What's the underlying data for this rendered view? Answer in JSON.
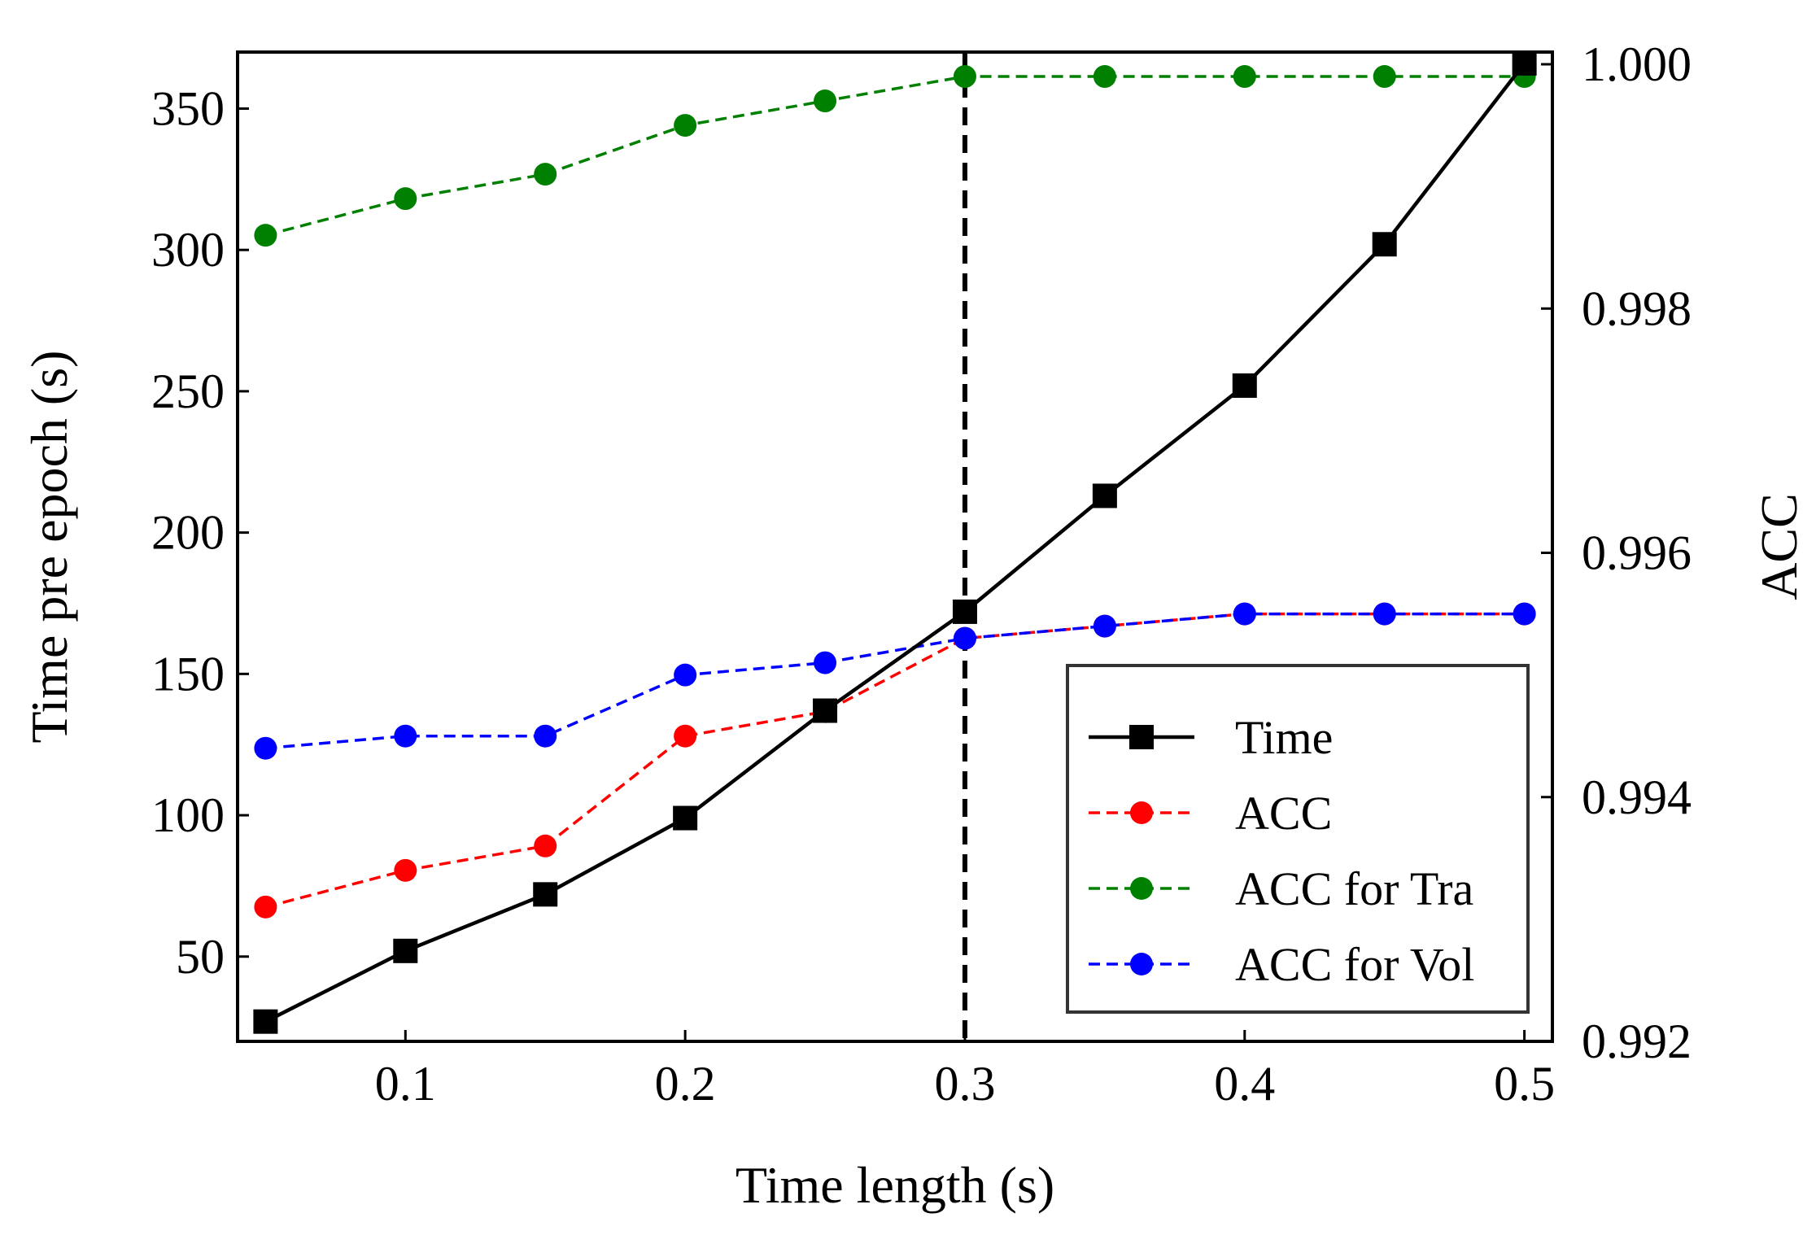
{
  "chart_data": {
    "type": "line",
    "title": "",
    "xlabel": "Time length (s)",
    "ylabel_left": "Time pre epoch (s)",
    "ylabel_right": "ACC",
    "x": [
      0.05,
      0.1,
      0.15,
      0.2,
      0.25,
      0.3,
      0.35,
      0.4,
      0.45,
      0.5
    ],
    "xlim": [
      0.04,
      0.51
    ],
    "ylim_left": [
      20,
      370
    ],
    "ylim_right": [
      0.992,
      1.0001
    ],
    "x_ticks": [
      0.1,
      0.2,
      0.3,
      0.4,
      0.5
    ],
    "x_tick_labels": [
      "0.1",
      "0.2",
      "0.3",
      "0.4",
      "0.5"
    ],
    "y_left_ticks": [
      50,
      100,
      150,
      200,
      250,
      300,
      350
    ],
    "y_left_tick_labels": [
      "50",
      "100",
      "150",
      "200",
      "250",
      "300",
      "350"
    ],
    "y_right_ticks": [
      0.992,
      0.994,
      0.996,
      0.998,
      1.0
    ],
    "y_right_tick_labels": [
      "0.992",
      "0.994",
      "0.996",
      "0.998",
      "1.000"
    ],
    "vline_x": 0.3,
    "grid": false,
    "legend_position": "lower-right",
    "series": [
      {
        "name": "Time",
        "axis": "left",
        "color": "#000000",
        "style": "solid",
        "marker": "square",
        "values": [
          27,
          52,
          72,
          99,
          137,
          172,
          213,
          252,
          302,
          366
        ]
      },
      {
        "name": "ACC",
        "axis": "right",
        "color": "#ff0000",
        "style": "dashed",
        "marker": "circle",
        "values": [
          0.9931,
          0.9934,
          0.9936,
          0.9945,
          0.9947,
          0.9953,
          0.9954,
          0.9955,
          0.9955,
          0.9955
        ]
      },
      {
        "name": "ACC for Tra",
        "axis": "right",
        "color": "#008000",
        "style": "dashed",
        "marker": "circle",
        "values": [
          0.9986,
          0.9989,
          0.9991,
          0.9995,
          0.9997,
          0.9999,
          0.9999,
          0.9999,
          0.9999,
          0.9999
        ]
      },
      {
        "name": "ACC for Vol",
        "axis": "right",
        "color": "#0000ff",
        "style": "dashed",
        "marker": "circle",
        "values": [
          0.9944,
          0.9945,
          0.9945,
          0.995,
          0.9951,
          0.9953,
          0.9954,
          0.9955,
          0.9955,
          0.9955
        ]
      }
    ]
  }
}
